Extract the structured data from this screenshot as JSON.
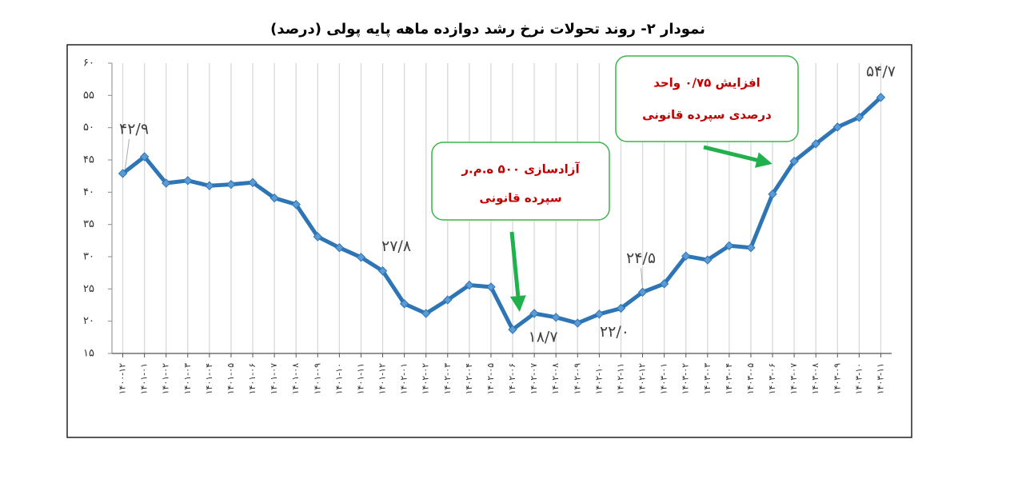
{
  "chart_data": {
    "type": "line",
    "title": "نمودار ۲- روند تحولات نرخ رشد دوازده ماهه پایه پولی (درصد)",
    "categories": [
      "۱۴۰۰-۱۲",
      "۱۴۰۱-۰۱",
      "۱۴۰۱-۰۲",
      "۱۴۰۱-۰۳",
      "۱۴۰۱-۰۴",
      "۱۴۰۱-۰۵",
      "۱۴۰۱-۰۶",
      "۱۴۰۱-۰۷",
      "۱۴۰۱-۰۸",
      "۱۴۰۱-۰۹",
      "۱۴۰۱-۱۰",
      "۱۴۰۱-۱۱",
      "۱۴۰۱-۱۲",
      "۱۴۰۲-۰۱",
      "۱۴۰۲-۰۲",
      "۱۴۰۲-۰۳",
      "۱۴۰۲-۰۴",
      "۱۴۰۲-۰۵",
      "۱۴۰۲-۰۶",
      "۱۴۰۲-۰۷",
      "۱۴۰۲-۰۸",
      "۱۴۰۲-۰۹",
      "۱۴۰۲-۱۰",
      "۱۴۰۲-۱۱",
      "۱۴۰۲-۱۲",
      "۱۴۰۳-۰۱",
      "۱۴۰۳-۰۲",
      "۱۴۰۳-۰۳",
      "۱۴۰۳-۰۴",
      "۱۴۰۳-۰۵",
      "۱۴۰۳-۰۶",
      "۱۴۰۳-۰۷",
      "۱۴۰۳-۰۸",
      "۱۴۰۳-۰۹",
      "۱۴۰۳-۱۰",
      "۱۴۰۳-۱۱"
    ],
    "values": [
      42.9,
      45.5,
      41.4,
      41.8,
      41.0,
      41.2,
      41.5,
      39.1,
      38.1,
      33.1,
      31.4,
      29.9,
      27.8,
      22.7,
      21.2,
      23.3,
      25.6,
      25.3,
      18.7,
      21.2,
      20.6,
      19.7,
      21.1,
      22.0,
      24.5,
      25.8,
      30.1,
      29.5,
      31.7,
      31.4,
      39.7,
      44.8,
      47.5,
      50.1,
      51.6,
      54.7
    ],
    "value_labels": [
      "۴۲/۹",
      null,
      null,
      null,
      null,
      null,
      null,
      null,
      null,
      null,
      null,
      null,
      "۲۷/۸",
      null,
      null,
      null,
      null,
      null,
      "۱۸/۷",
      null,
      null,
      null,
      null,
      "۲۲/۰",
      "۲۴/۵",
      null,
      null,
      null,
      null,
      null,
      null,
      null,
      null,
      null,
      null,
      "۵۴/۷"
    ],
    "color": "#2e75b6",
    "ylim": [
      15,
      60
    ],
    "yticks": [
      {
        "value": 15,
        "label": "۱۵"
      },
      {
        "value": 20,
        "label": "۲۰"
      },
      {
        "value": 25,
        "label": "۲۵"
      },
      {
        "value": 30,
        "label": "۳۰"
      },
      {
        "value": 35,
        "label": "۳۵"
      },
      {
        "value": 40,
        "label": "۴۰"
      },
      {
        "value": 45,
        "label": "۴۵"
      },
      {
        "value": 50,
        "label": "۵۰"
      },
      {
        "value": 55,
        "label": "۵۵"
      },
      {
        "value": 60,
        "label": "۶۰"
      }
    ],
    "grid": true,
    "annotations": [
      {
        "lines": [
          "آزادسازی ۵۰۰ ه.م.ر",
          "سپرده قانونی"
        ]
      },
      {
        "lines": [
          "افزایش ۰/۷۵ واحد",
          "درصدی سپرده قانونی"
        ]
      }
    ]
  }
}
